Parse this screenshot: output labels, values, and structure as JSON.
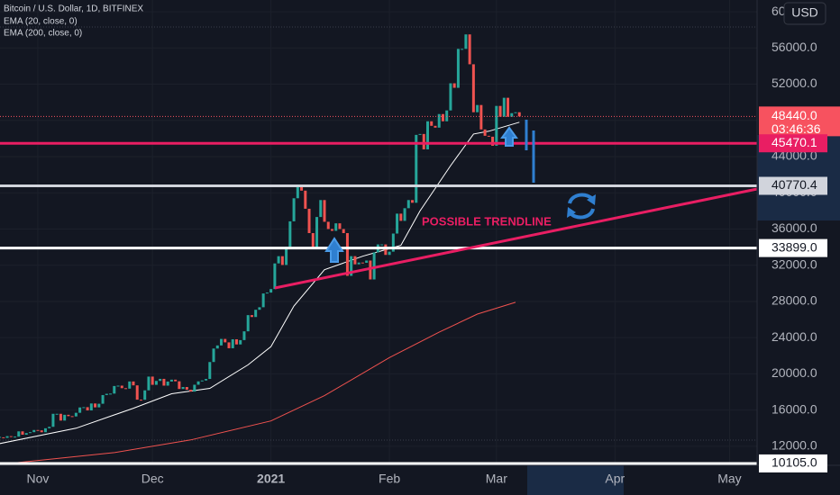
{
  "chart_data": {
    "type": "candlestick",
    "title": "Bitcoin / U.S. Dollar, 1D, BITFINEX",
    "currency": "USD",
    "grid": true,
    "xlim": [
      0.1,
      198.2
    ],
    "xticks": [
      {
        "value": 10,
        "label": "Nov"
      },
      {
        "value": 40,
        "label": "Dec"
      },
      {
        "value": 71,
        "label": "2021"
      },
      {
        "value": 102,
        "label": "Feb"
      },
      {
        "value": 130,
        "label": "Mar"
      },
      {
        "value": 161,
        "label": "Apr"
      },
      {
        "value": 191,
        "label": "May"
      }
    ],
    "ylim": [
      9900,
      61300
    ],
    "yticks": [
      {
        "value": 12000,
        "label": "12000.0"
      },
      {
        "value": 16000,
        "label": "16000.0"
      },
      {
        "value": 20000,
        "label": "20000.0"
      },
      {
        "value": 24000,
        "label": "24000.0"
      },
      {
        "value": 28000,
        "label": "28000.0"
      },
      {
        "value": 32000,
        "label": "32000.0"
      },
      {
        "value": 36000,
        "label": "36000.0"
      },
      {
        "value": 40000,
        "label": "40000.0"
      },
      {
        "value": 44000,
        "label": "44000.0"
      },
      {
        "value": 48000,
        "label": "48000.0"
      },
      {
        "value": 52000,
        "label": "52000.0"
      },
      {
        "value": 56000,
        "label": "56000.0"
      },
      {
        "value": 60000,
        "label": "60000.0"
      }
    ],
    "candles": {
      "up_color": "#26a69a",
      "down_color": "#ef5350",
      "closes": [
        12990,
        12930,
        13120,
        13040,
        13070,
        13650,
        13280,
        13460,
        13560,
        13800,
        13760,
        13550,
        13990,
        14150,
        15590,
        15590,
        14840,
        15480,
        15330,
        15300,
        15700,
        16290,
        16320,
        15960,
        16730,
        16300,
        16700,
        17660,
        17800,
        17820,
        18660,
        18700,
        18420,
        18370,
        19160,
        18730,
        17150,
        17140,
        18180,
        19700,
        18790,
        19220,
        19450,
        18700,
        19150,
        19360,
        19180,
        18330,
        18550,
        18250,
        18040,
        18800,
        19170,
        19270,
        19440,
        21310,
        22800,
        23140,
        23860,
        23480,
        22830,
        23820,
        23250,
        23730,
        24700,
        26490,
        26280,
        27080,
        27360,
        28880,
        28980,
        29370,
        32200,
        33000,
        32030,
        34030,
        36850,
        39400,
        40670,
        40240,
        38240,
        35550,
        33900,
        37330,
        39200,
        36800,
        36000,
        35800,
        36630,
        36000,
        35550,
        30830,
        33000,
        32100,
        32300,
        32270,
        32520,
        30430,
        33420,
        34300,
        34300,
        33140,
        33500,
        35500,
        37700,
        36900,
        38300,
        39200,
        38900,
        46400,
        46500,
        44800,
        47900,
        47400,
        47200,
        48700,
        47900,
        49100,
        52100,
        51600,
        55900,
        55900,
        57500,
        54200,
        48900,
        49700,
        47000,
        46300,
        46200,
        45200,
        49600,
        48400,
        50500,
        48400,
        48800,
        48900,
        48440
      ]
    },
    "indicators": [
      {
        "name": "EMA (20, close, 0)",
        "color": "#ffffff",
        "x": [
          0,
          20,
          35,
          45,
          55,
          65,
          71,
          77,
          85,
          95,
          100,
          105,
          110,
          118,
          124,
          128,
          132,
          136
        ],
        "values": [
          12300,
          14000,
          16200,
          17800,
          18400,
          21000,
          23000,
          27500,
          31500,
          33000,
          33600,
          34200,
          38000,
          43000,
          46500,
          46800,
          47300,
          47800
        ]
      },
      {
        "name": "EMA (200, close, 0)",
        "color": "#f0524f",
        "x": [
          0,
          30,
          50,
          71,
          85,
          102,
          115,
          125,
          135
        ],
        "values": [
          10000,
          11300,
          12700,
          14800,
          17600,
          21800,
          24600,
          26600,
          27900
        ]
      }
    ],
    "last_price": {
      "value": 48440,
      "label": "48440.0",
      "countdown": "03:46:36",
      "color": "#f7525f"
    },
    "levels": [
      {
        "value": 45470.1,
        "label": "45470.1",
        "color": "#e91e63"
      },
      {
        "value": 40770.4,
        "label": "40770.4",
        "color": "#d1d4dc"
      },
      {
        "value": 33899.0,
        "label": "33899.0",
        "color": "#ffffff"
      },
      {
        "value": 10105.0,
        "label": "10105.0",
        "color": "#ffffff"
      }
    ],
    "trendline": {
      "label": "POSSIBLE TRENDLINE",
      "color": "#e91e63",
      "x": [
        72,
        198.2
      ],
      "values": [
        29490,
        40420
      ]
    }
  }
}
